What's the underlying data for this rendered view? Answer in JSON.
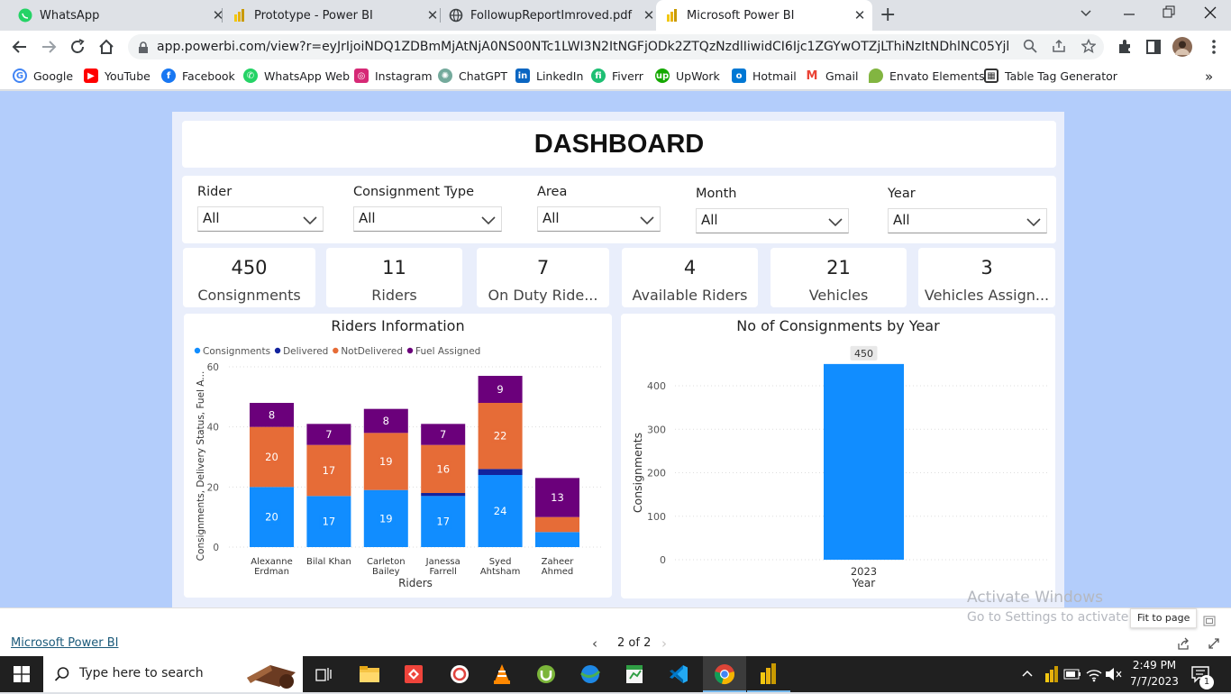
{
  "browser": {
    "tabs": [
      {
        "label": "WhatsApp",
        "icon": "whatsapp-icon",
        "active": false
      },
      {
        "label": "Prototype - Power BI",
        "icon": "powerbi-icon",
        "active": false
      },
      {
        "label": "FollowupReportImroved.pdf",
        "icon": "globe-icon",
        "active": false
      },
      {
        "label": "Microsoft Power BI",
        "icon": "powerbi-icon",
        "active": true
      }
    ],
    "url": "app.powerbi.com/view?r=eyJrIjoiNDQ1ZDBmMjAtNjA0NS00NTc1LWI3N2ItNGFjODk2ZTQzNzdlIiwidCI6Ijc1ZGYwOTZjLThiNzItNDhlNC05YjkxLWNiZjc5ZD...",
    "bookmarks": [
      {
        "label": "Google",
        "icon": "google-icon",
        "color": "#4285f4"
      },
      {
        "label": "YouTube",
        "icon": "youtube-icon",
        "color": "#ff0000"
      },
      {
        "label": "Facebook",
        "icon": "facebook-icon",
        "color": "#1877f2"
      },
      {
        "label": "WhatsApp Web",
        "icon": "whatsapp-icon",
        "color": "#25d366"
      },
      {
        "label": "Instagram",
        "icon": "instagram-icon",
        "color": "#d62976"
      },
      {
        "label": "ChatGPT",
        "icon": "chatgpt-icon",
        "color": "#74aa9c"
      },
      {
        "label": "LinkedIn",
        "icon": "linkedin-icon",
        "color": "#0a66c2"
      },
      {
        "label": "Fiverr",
        "icon": "fiverr-icon",
        "color": "#1dbf73"
      },
      {
        "label": "UpWork",
        "icon": "upwork-icon",
        "color": "#14a800"
      },
      {
        "label": "Hotmail",
        "icon": "outlook-icon",
        "color": "#0078d4"
      },
      {
        "label": "Gmail",
        "icon": "gmail-icon",
        "color": "#ea4335"
      },
      {
        "label": "Envato Elements",
        "icon": "envato-icon",
        "color": "#82b541"
      },
      {
        "label": "Table Tag Generator",
        "icon": "table-icon",
        "color": "#333333"
      }
    ],
    "overflow": "»"
  },
  "dashboard": {
    "title": "DASHBOARD",
    "slicers": [
      {
        "label": "Rider",
        "value": "All"
      },
      {
        "label": "Consignment Type",
        "value": "All"
      },
      {
        "label": "Area",
        "value": "All"
      },
      {
        "label": "Month",
        "value": "All"
      },
      {
        "label": "Year",
        "value": "All"
      }
    ],
    "kpis": [
      {
        "value": "450",
        "label": "Consignments"
      },
      {
        "value": "11",
        "label": "Riders"
      },
      {
        "value": "7",
        "label": "On Duty Ride..."
      },
      {
        "value": "4",
        "label": "Available Riders"
      },
      {
        "value": "21",
        "label": "Vehicles"
      },
      {
        "value": "3",
        "label": "Vehicles Assign..."
      }
    ]
  },
  "chart_data": [
    {
      "type": "bar",
      "stacked": true,
      "title": "Riders Information",
      "xlabel": "Riders",
      "ylabel": "Consignments, Delivery Status, Fuel A...",
      "ylim": [
        0,
        60
      ],
      "yticks": [
        0,
        20,
        40,
        60
      ],
      "legend_position": "top-left",
      "categories": [
        [
          "Alexanne",
          "Erdman"
        ],
        [
          "Bilal Khan"
        ],
        [
          "Carleton",
          "Bailey"
        ],
        [
          "Janessa",
          "Farrell"
        ],
        [
          "Syed",
          "Ahtsham"
        ],
        [
          "Zaheer",
          "Ahmed"
        ]
      ],
      "series": [
        {
          "name": "Consignments",
          "color": "#118dff",
          "values": [
            20,
            17,
            19,
            17,
            24,
            5
          ],
          "labels": [
            "20",
            "17",
            "19",
            "17",
            "24",
            ""
          ]
        },
        {
          "name": "Delivered",
          "color": "#12239e",
          "values": [
            0,
            0,
            0,
            1,
            2,
            0
          ],
          "labels": [
            "",
            "",
            "",
            "",
            "",
            ""
          ]
        },
        {
          "name": "NotDelivered",
          "color": "#e66c37",
          "values": [
            20,
            17,
            19,
            16,
            22,
            5
          ],
          "labels": [
            "20",
            "17",
            "19",
            "16",
            "22",
            ""
          ]
        },
        {
          "name": "Fuel Assigned",
          "color": "#6b007b",
          "values": [
            8,
            7,
            8,
            7,
            9,
            13
          ],
          "labels": [
            "8",
            "7",
            "8",
            "7",
            "9",
            "13"
          ]
        }
      ]
    },
    {
      "type": "bar",
      "title": "No of Consignments by Year",
      "xlabel": "Year",
      "ylabel": "Consignments",
      "ylim": [
        0,
        450
      ],
      "yticks": [
        0,
        100,
        200,
        300,
        400
      ],
      "categories": [
        "2023"
      ],
      "values": [
        450
      ],
      "labels": [
        "450"
      ],
      "color": "#118dff"
    }
  ],
  "overlay": {
    "activate_title": "Activate Windows",
    "activate_sub": "Go to Settings to activate Windows.",
    "fit_tooltip": "Fit to page"
  },
  "statusbar": {
    "app_link": "Microsoft Power BI",
    "page_indicator": "2 of 2"
  },
  "taskbar": {
    "search_placeholder": "Type here to search",
    "time": "2:49 PM",
    "date": "7/7/2023",
    "notification_count": "1"
  }
}
